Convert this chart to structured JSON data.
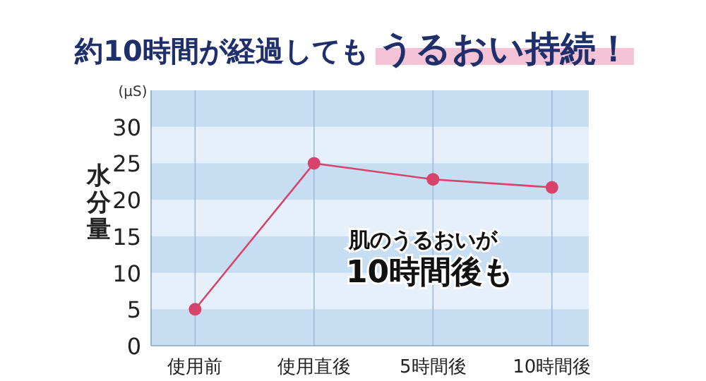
{
  "chart_data": {
    "type": "line",
    "title": "約10時間が経過しても **うるおい持続！**",
    "ylabel": "水分量",
    "categories": [
      "使用前",
      "使用直後",
      "5時間後",
      "10時間後"
    ],
    "values": [
      5,
      25,
      22.8,
      21.7
    ],
    "color": "#d8436b",
    "marker": "circle",
    "line_style": "solid",
    "ylim": [
      0,
      35
    ],
    "yticks": [
      0,
      5,
      10,
      15,
      20,
      25,
      30
    ],
    "grid": "x",
    "bands": [
      {
        "axis": "y",
        "from": 0,
        "to": 5,
        "color": "#c6ddf2"
      },
      {
        "axis": "y",
        "from": 10,
        "to": 15,
        "color": "#c6ddf2"
      },
      {
        "axis": "y",
        "from": 20,
        "to": 25,
        "color": "#c6ddf2"
      },
      {
        "axis": "y",
        "from": 30,
        "to": 35,
        "color": "#c6ddf2"
      }
    ],
    "annotations": [
      "(μS)",
      "肌のうるおいが",
      "10時間後も"
    ]
  }
}
